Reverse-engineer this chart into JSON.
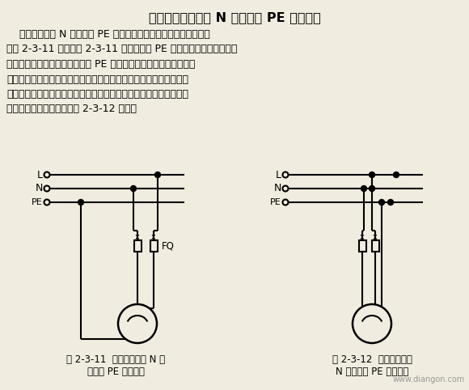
{
  "title": "三、单相插座零线 N 与保护线 PE 错误接线",
  "body_text": [
    "    单相插座零线 N 与保护线 PE 接线错误可造成漏电断路器误动作，",
    "如图 2-3-11 所示。图 2-3-11 中错误地将 PE 线接到了插座的工作零线",
    "插孔，将工作零线接到了保护线 PE 插孔。这时合上漏电断路器，如",
    "插座没有使用，用电电器、漏电断路器正常不动作；当插座、插入用",
    "电电器开始使用时，漏电断路器跳闸。该故障常见于接插座线时的错",
    "误接线。正确接线方法如图 2-3-12 所示。"
  ],
  "fig1_caption_1": "图 2-3-11  单相插座零线 N 与",
  "fig1_caption_2": "保护线 PE 错误接线",
  "fig2_caption_1": "图 2-3-12  单相插座零线",
  "fig2_caption_2": "N 与保护线 PE 正确接线",
  "watermark": "www.diangon.com",
  "bg_color": "#f0ece0",
  "text_color": "#000000",
  "line_color": "#000000"
}
